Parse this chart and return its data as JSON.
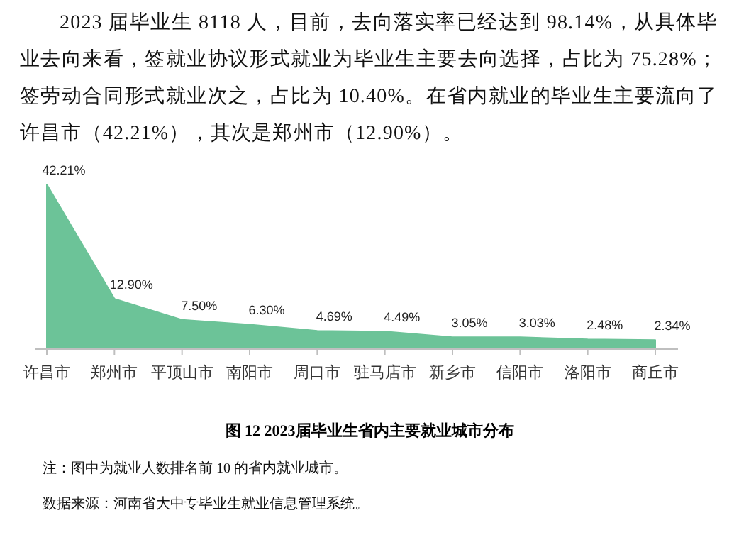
{
  "chart_data": {
    "type": "area",
    "title": "图 12 2023届毕业生省内主要就业城市分布",
    "annotations": [
      "2023 届毕业生 8118 人，目前，去向落实率已经达到 98.14%，从具体毕业去向来看，签就业协议形式就业为毕业生主要去向选择，占比为 75.28%；签劳动合同形式就业次之，占比为 10.40%。在省内就业的毕业生主要流向了许昌市（42.21%），其次是郑州市（12.90%）。",
      "注：图中为就业人数排名前 10 的省内就业城市。",
      "数据来源：河南省大中专毕业生就业信息管理系统。"
    ],
    "categories": [
      "许昌市",
      "郑州市",
      "平顶山市",
      "南阳市",
      "周口市",
      "驻马店市",
      "新乡市",
      "信阳市",
      "洛阳市",
      "商丘市"
    ],
    "values": [
      42.21,
      12.9,
      7.5,
      6.3,
      4.69,
      4.49,
      3.05,
      3.03,
      2.48,
      2.34
    ],
    "value_labels": [
      "42.21%",
      "12.90%",
      "7.50%",
      "6.30%",
      "4.69%",
      "4.49%",
      "3.05%",
      "3.03%",
      "2.48%",
      "2.34%"
    ],
    "color": "#6cc398"
  }
}
